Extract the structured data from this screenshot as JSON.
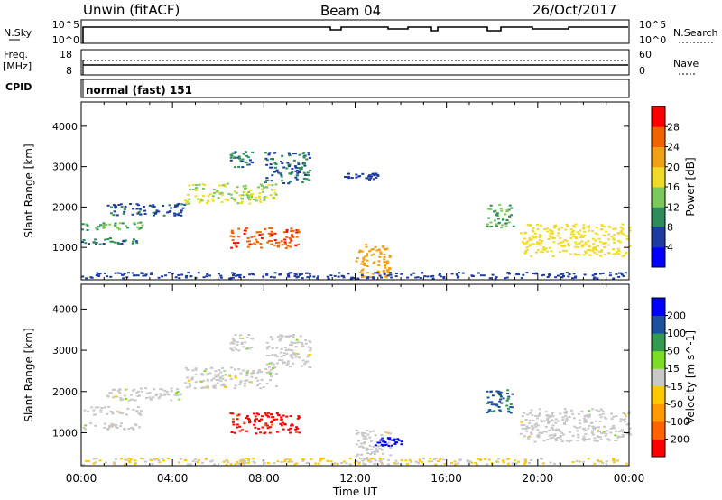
{
  "header": {
    "station": "Unwin (fitACF)",
    "beam": "Beam 04",
    "date": "26/Oct/2017"
  },
  "strips": {
    "nsky": {
      "label": "N.Sky",
      "tick_top": "10^5",
      "tick_bottom": "10^0",
      "right_label": "N.Search",
      "right_tick_top": "10^5",
      "right_tick_bottom": "10^0"
    },
    "freq": {
      "label_line1": "Freq.",
      "label_line2": "[MHz]",
      "tick_top": "18",
      "tick_bottom": "8",
      "right_label": "Nave",
      "right_tick_top": "60",
      "right_tick_bottom": "0"
    },
    "cpid": {
      "label": "CPID",
      "program": "normal (fast) 151"
    }
  },
  "colors": {
    "power_scale": [
      "#0000ff",
      "#1e3ca0",
      "#2d8c5a",
      "#7dc85a",
      "#f0dc28",
      "#f0a014",
      "#f06400",
      "#ff0000"
    ],
    "velocity_scale": [
      "#ff0000",
      "#ff6400",
      "#ff9b00",
      "#ffc800",
      "#c8c8c8",
      "#7ddc28",
      "#329b50",
      "#1e50a0",
      "#0000ff"
    ]
  },
  "chart_data": [
    {
      "type": "heatmap",
      "quantity": "Power",
      "ylabel": "Slant Range [km]",
      "xlabel": "Time UT",
      "xticks": [
        "00:00",
        "04:00",
        "08:00",
        "12:00",
        "16:00",
        "20:00",
        "00:00"
      ],
      "yticks": [
        1000,
        2000,
        3000,
        4000
      ],
      "ylim": [
        200,
        4600
      ],
      "xlim_hours": [
        0,
        24
      ],
      "colorbar": {
        "label": "Power [dB]",
        "ticks": [
          "4",
          "8",
          "12",
          "16",
          "20",
          "24",
          "28"
        ],
        "range": [
          0,
          32
        ]
      },
      "echo_regions": [
        {
          "t": [
            0.0,
            2.8
          ],
          "r": [
            1450,
            1650
          ],
          "value": 12
        },
        {
          "t": [
            0.0,
            2.5
          ],
          "r": [
            1100,
            1250
          ],
          "value": 9
        },
        {
          "t": [
            1.0,
            4.5
          ],
          "r": [
            1800,
            2100
          ],
          "value": 7
        },
        {
          "t": [
            4.5,
            8.5
          ],
          "r": [
            2100,
            2600
          ],
          "value": 16
        },
        {
          "t": [
            6.5,
            7.5
          ],
          "r": [
            3000,
            3400
          ],
          "value": 9
        },
        {
          "t": [
            8.0,
            10.0
          ],
          "r": [
            2600,
            3400
          ],
          "value": 8
        },
        {
          "t": [
            6.5,
            9.5
          ],
          "r": [
            1000,
            1500
          ],
          "value": 27
        },
        {
          "t": [
            12.0,
            13.5
          ],
          "r": [
            250,
            1100
          ],
          "value": 22
        },
        {
          "t": [
            11.5,
            13.0
          ],
          "r": [
            2700,
            2850
          ],
          "value": 6
        },
        {
          "t": [
            17.7,
            18.9
          ],
          "r": [
            1500,
            2100
          ],
          "value": 12
        },
        {
          "t": [
            19.2,
            24.0
          ],
          "r": [
            800,
            1600
          ],
          "value": 18
        },
        {
          "t": [
            0.0,
            24.0
          ],
          "r": [
            250,
            400
          ],
          "value": 6
        }
      ]
    },
    {
      "type": "heatmap",
      "quantity": "Velocity",
      "ylabel": "Slant Range [km]",
      "xlabel": "Time UT",
      "xticks": [
        "00:00",
        "04:00",
        "08:00",
        "12:00",
        "16:00",
        "20:00",
        "00:00"
      ],
      "yticks": [
        1000,
        2000,
        3000,
        4000
      ],
      "ylim": [
        200,
        4600
      ],
      "xlim_hours": [
        0,
        24
      ],
      "colorbar": {
        "label": "Velocity [m s^-1]",
        "ticks": [
          "200",
          "100",
          "50",
          "15",
          "-15",
          "-50",
          "-100",
          "-200"
        ],
        "range": [
          -250,
          250
        ]
      },
      "echo_regions": [
        {
          "t": [
            0.0,
            2.8
          ],
          "r": [
            1450,
            1650
          ],
          "value": 0
        },
        {
          "t": [
            0.0,
            2.5
          ],
          "r": [
            1100,
            1250
          ],
          "value": 0
        },
        {
          "t": [
            1.0,
            4.5
          ],
          "r": [
            1800,
            2100
          ],
          "value": 0
        },
        {
          "t": [
            4.5,
            8.5
          ],
          "r": [
            2100,
            2600
          ],
          "value": 0
        },
        {
          "t": [
            6.5,
            7.5
          ],
          "r": [
            3000,
            3400
          ],
          "value": 0
        },
        {
          "t": [
            8.0,
            10.0
          ],
          "r": [
            2600,
            3400
          ],
          "value": 0
        },
        {
          "t": [
            6.5,
            9.5
          ],
          "r": [
            1000,
            1500
          ],
          "value": -220
        },
        {
          "t": [
            12.0,
            13.5
          ],
          "r": [
            250,
            1100
          ],
          "value": 0
        },
        {
          "t": [
            12.8,
            14.0
          ],
          "r": [
            700,
            900
          ],
          "value": 220
        },
        {
          "t": [
            17.7,
            18.9
          ],
          "r": [
            1500,
            2100
          ],
          "value": 150
        },
        {
          "t": [
            19.2,
            24.0
          ],
          "r": [
            800,
            1600
          ],
          "value": 0
        },
        {
          "t": [
            0.0,
            24.0
          ],
          "r": [
            250,
            400
          ],
          "value": -30
        }
      ]
    }
  ]
}
